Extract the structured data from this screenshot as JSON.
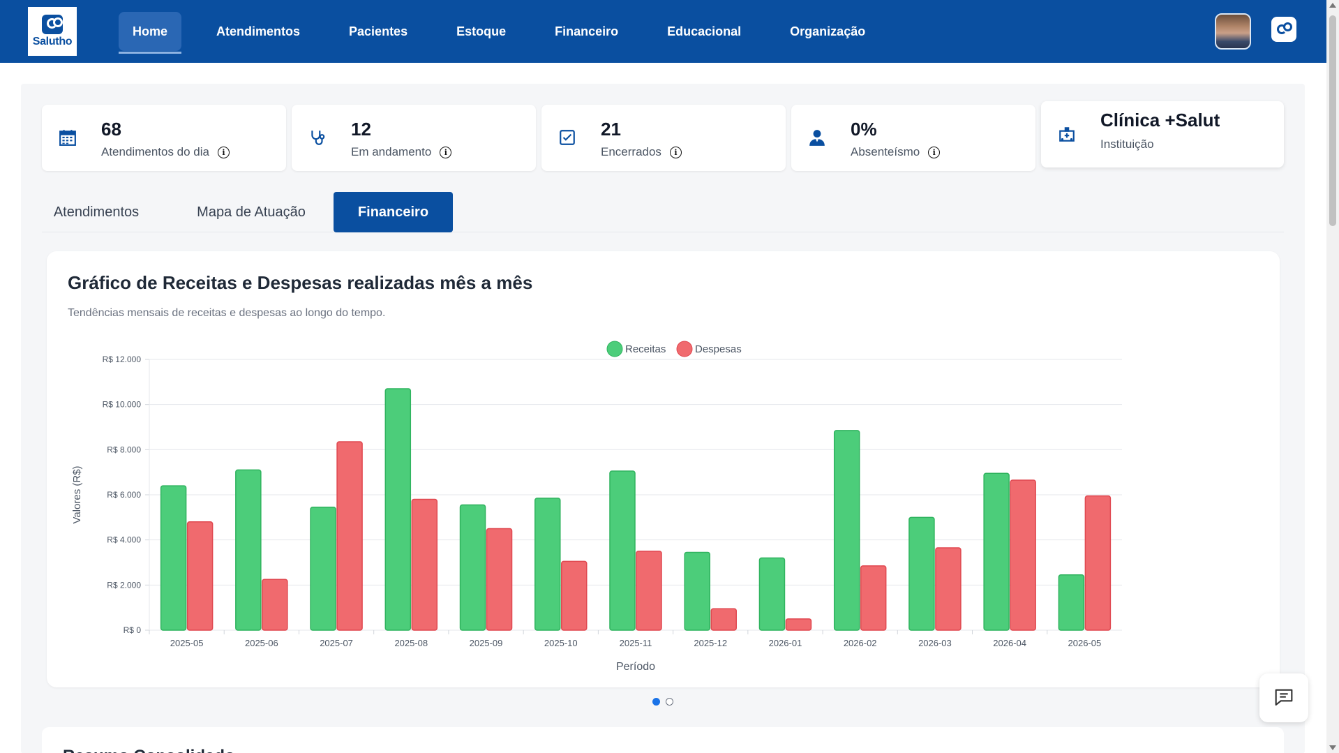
{
  "brand": {
    "logo_text": "Salutho"
  },
  "nav": {
    "items": [
      {
        "label": "Home",
        "active": true
      },
      {
        "label": "Atendimentos"
      },
      {
        "label": "Pacientes"
      },
      {
        "label": "Estoque"
      },
      {
        "label": "Financeiro"
      },
      {
        "label": "Educacional"
      },
      {
        "label": "Organização"
      }
    ]
  },
  "stats": [
    {
      "value": "68",
      "label": "Atendimentos do dia",
      "icon": "calendar-icon"
    },
    {
      "value": "12",
      "label": "Em andamento",
      "icon": "stethoscope-icon"
    },
    {
      "value": "21",
      "label": "Encerrados",
      "icon": "checkbox-icon"
    },
    {
      "value": "0%",
      "label": "Absenteísmo",
      "icon": "person-icon"
    }
  ],
  "institution": {
    "name": "Clínica +Salut",
    "label": "Instituição",
    "icon": "hospital-icon"
  },
  "tabs": [
    {
      "label": "Atendimentos"
    },
    {
      "label": "Mapa de Atuação"
    },
    {
      "label": "Financeiro",
      "active": true
    }
  ],
  "chart_card": {
    "title": "Gráfico de Receitas e Despesas realizadas mês a mês",
    "subtitle": "Tendências mensais de receitas e despesas ao longo do tempo."
  },
  "chart_data": {
    "type": "bar",
    "xlabel": "Período",
    "ylabel": "Valores (R$)",
    "ylim": [
      0,
      12000
    ],
    "yticks": [
      "R$ 0",
      "R$ 2.000",
      "R$ 4.000",
      "R$ 6.000",
      "R$ 8.000",
      "R$ 10.000",
      "R$ 12.000"
    ],
    "legend_position": "top-center",
    "grid": true,
    "categories": [
      "2025-05",
      "2025-06",
      "2025-07",
      "2025-08",
      "2025-09",
      "2025-10",
      "2025-11",
      "2025-12",
      "2026-01",
      "2026-02",
      "2026-03",
      "2026-04",
      "2026-05"
    ],
    "series": [
      {
        "name": "Receitas",
        "color": "#4ccd7a",
        "stroke": "#2fb35e",
        "values": [
          6400,
          7100,
          5450,
          10700,
          5550,
          5850,
          7050,
          3450,
          3200,
          8850,
          5000,
          6950,
          2450
        ]
      },
      {
        "name": "Despesas",
        "color": "#f06a6e",
        "stroke": "#e04850",
        "values": [
          4800,
          2250,
          8350,
          5800,
          4500,
          3050,
          3500,
          950,
          500,
          2850,
          3650,
          6650,
          5950
        ]
      }
    ]
  },
  "pagination": {
    "current": 1,
    "total": 2
  },
  "bottom_section": {
    "title": "Resumo Consolidado"
  },
  "colors": {
    "primary": "#0a4fa0",
    "page_bg": "#f5f6f8"
  }
}
